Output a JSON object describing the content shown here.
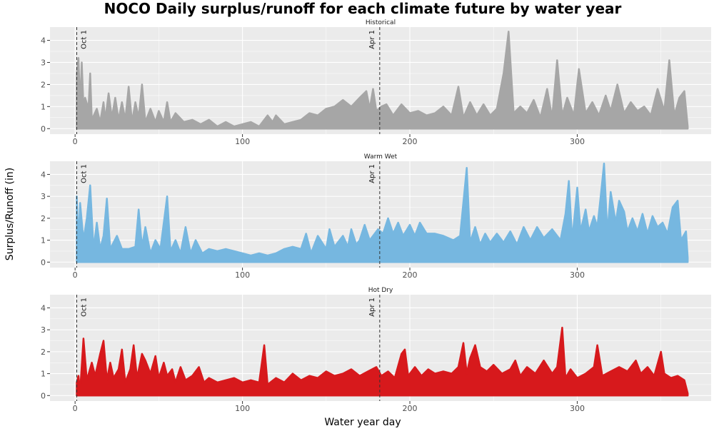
{
  "chart_data": {
    "type": "area",
    "title": "NOCO Daily surplus/runoff for each climate future by water year",
    "xlabel": "Water year day",
    "ylabel": "Surplus/Runoff (in)",
    "xlim": [
      -15,
      380
    ],
    "ylim": [
      -0.25,
      4.6
    ],
    "x_ticks": [
      0,
      100,
      200,
      300
    ],
    "y_ticks": [
      0,
      1,
      2,
      3,
      4
    ],
    "grid": true,
    "reference_lines": [
      {
        "x": 1,
        "label": "Oct 1"
      },
      {
        "x": 182,
        "label": "Apr 1"
      }
    ],
    "colors": {
      "panel_bg": "#ebebeb",
      "grid": "#ffffff",
      "tick_text": "#4d4d4d",
      "ref_line": "#333333"
    },
    "series": [
      {
        "name": "Historical",
        "color": "#a6a6a6",
        "points": [
          [
            1,
            2.5
          ],
          [
            2,
            3.2
          ],
          [
            3,
            1.0
          ],
          [
            4,
            3.0
          ],
          [
            5,
            1.0
          ],
          [
            6,
            1.4
          ],
          [
            8,
            0.9
          ],
          [
            9,
            2.5
          ],
          [
            10,
            0.4
          ],
          [
            13,
            0.9
          ],
          [
            15,
            0.3
          ],
          [
            17,
            1.2
          ],
          [
            18,
            0.4
          ],
          [
            20,
            1.6
          ],
          [
            22,
            0.5
          ],
          [
            24,
            1.4
          ],
          [
            26,
            0.4
          ],
          [
            28,
            1.2
          ],
          [
            30,
            0.4
          ],
          [
            32,
            1.9
          ],
          [
            34,
            0.3
          ],
          [
            36,
            1.2
          ],
          [
            38,
            0.5
          ],
          [
            40,
            2.0
          ],
          [
            42,
            0.3
          ],
          [
            45,
            0.9
          ],
          [
            48,
            0.3
          ],
          [
            50,
            0.8
          ],
          [
            53,
            0.3
          ],
          [
            55,
            1.2
          ],
          [
            57,
            0.3
          ],
          [
            60,
            0.7
          ],
          [
            65,
            0.3
          ],
          [
            70,
            0.4
          ],
          [
            75,
            0.2
          ],
          [
            80,
            0.4
          ],
          [
            85,
            0.1
          ],
          [
            90,
            0.3
          ],
          [
            95,
            0.1
          ],
          [
            100,
            0.2
          ],
          [
            105,
            0.3
          ],
          [
            110,
            0.1
          ],
          [
            115,
            0.6
          ],
          [
            118,
            0.3
          ],
          [
            120,
            0.6
          ],
          [
            125,
            0.2
          ],
          [
            130,
            0.3
          ],
          [
            135,
            0.4
          ],
          [
            140,
            0.7
          ],
          [
            145,
            0.6
          ],
          [
            150,
            0.9
          ],
          [
            155,
            1.0
          ],
          [
            160,
            1.3
          ],
          [
            165,
            1.0
          ],
          [
            170,
            1.4
          ],
          [
            174,
            1.7
          ],
          [
            176,
            0.9
          ],
          [
            178,
            1.8
          ],
          [
            180,
            0.8
          ],
          [
            183,
            1.0
          ],
          [
            186,
            1.1
          ],
          [
            190,
            0.6
          ],
          [
            193,
            0.9
          ],
          [
            195,
            1.1
          ],
          [
            200,
            0.7
          ],
          [
            205,
            0.8
          ],
          [
            210,
            0.6
          ],
          [
            215,
            0.7
          ],
          [
            220,
            1.0
          ],
          [
            225,
            0.6
          ],
          [
            229,
            1.9
          ],
          [
            232,
            0.5
          ],
          [
            236,
            1.2
          ],
          [
            240,
            0.6
          ],
          [
            244,
            1.1
          ],
          [
            248,
            0.6
          ],
          [
            252,
            0.9
          ],
          [
            256,
            2.5
          ],
          [
            259,
            4.4
          ],
          [
            262,
            0.7
          ],
          [
            266,
            1.0
          ],
          [
            270,
            0.7
          ],
          [
            274,
            1.3
          ],
          [
            278,
            0.5
          ],
          [
            282,
            1.8
          ],
          [
            285,
            0.5
          ],
          [
            288,
            3.1
          ],
          [
            291,
            0.6
          ],
          [
            294,
            1.4
          ],
          [
            298,
            0.6
          ],
          [
            301,
            2.7
          ],
          [
            305,
            0.7
          ],
          [
            309,
            1.2
          ],
          [
            313,
            0.6
          ],
          [
            317,
            1.5
          ],
          [
            320,
            0.8
          ],
          [
            324,
            2.0
          ],
          [
            328,
            0.7
          ],
          [
            332,
            1.2
          ],
          [
            336,
            0.8
          ],
          [
            340,
            1.0
          ],
          [
            344,
            0.6
          ],
          [
            348,
            1.8
          ],
          [
            352,
            0.8
          ],
          [
            355,
            3.1
          ],
          [
            358,
            0.6
          ],
          [
            361,
            1.4
          ],
          [
            364,
            1.7
          ],
          [
            366,
            0.1
          ]
        ]
      },
      {
        "name": "Warm Wet",
        "color": "#76b7e0",
        "points": [
          [
            1,
            3.0
          ],
          [
            2,
            0.8
          ],
          [
            3,
            2.7
          ],
          [
            5,
            1.0
          ],
          [
            7,
            2.0
          ],
          [
            9,
            3.5
          ],
          [
            11,
            0.6
          ],
          [
            13,
            1.8
          ],
          [
            15,
            0.6
          ],
          [
            17,
            1.2
          ],
          [
            19,
            2.9
          ],
          [
            21,
            0.6
          ],
          [
            25,
            1.2
          ],
          [
            28,
            0.6
          ],
          [
            32,
            0.6
          ],
          [
            36,
            0.7
          ],
          [
            38,
            2.4
          ],
          [
            40,
            0.7
          ],
          [
            42,
            1.6
          ],
          [
            45,
            0.4
          ],
          [
            48,
            1.0
          ],
          [
            51,
            0.6
          ],
          [
            55,
            3.0
          ],
          [
            57,
            0.5
          ],
          [
            60,
            1.0
          ],
          [
            63,
            0.4
          ],
          [
            66,
            1.6
          ],
          [
            69,
            0.4
          ],
          [
            72,
            1.0
          ],
          [
            76,
            0.4
          ],
          [
            80,
            0.6
          ],
          [
            85,
            0.5
          ],
          [
            90,
            0.6
          ],
          [
            95,
            0.5
          ],
          [
            100,
            0.4
          ],
          [
            105,
            0.3
          ],
          [
            110,
            0.4
          ],
          [
            115,
            0.3
          ],
          [
            120,
            0.4
          ],
          [
            125,
            0.6
          ],
          [
            130,
            0.7
          ],
          [
            135,
            0.6
          ],
          [
            138,
            1.3
          ],
          [
            141,
            0.4
          ],
          [
            145,
            1.2
          ],
          [
            150,
            0.6
          ],
          [
            152,
            1.5
          ],
          [
            155,
            0.7
          ],
          [
            160,
            1.2
          ],
          [
            163,
            0.7
          ],
          [
            165,
            1.5
          ],
          [
            168,
            0.8
          ],
          [
            170,
            1.0
          ],
          [
            173,
            1.7
          ],
          [
            176,
            1.0
          ],
          [
            178,
            1.2
          ],
          [
            181,
            1.5
          ],
          [
            184,
            1.3
          ],
          [
            187,
            2.0
          ],
          [
            190,
            1.3
          ],
          [
            193,
            1.8
          ],
          [
            196,
            1.2
          ],
          [
            200,
            1.7
          ],
          [
            203,
            1.2
          ],
          [
            206,
            1.8
          ],
          [
            210,
            1.3
          ],
          [
            215,
            1.3
          ],
          [
            220,
            1.2
          ],
          [
            226,
            1.0
          ],
          [
            230,
            1.2
          ],
          [
            234,
            4.3
          ],
          [
            236,
            0.9
          ],
          [
            239,
            1.6
          ],
          [
            242,
            0.8
          ],
          [
            245,
            1.3
          ],
          [
            248,
            0.9
          ],
          [
            252,
            1.3
          ],
          [
            256,
            0.9
          ],
          [
            260,
            1.4
          ],
          [
            264,
            0.8
          ],
          [
            268,
            1.6
          ],
          [
            272,
            1.0
          ],
          [
            276,
            1.6
          ],
          [
            280,
            1.1
          ],
          [
            285,
            1.5
          ],
          [
            290,
            1.0
          ],
          [
            293,
            2.2
          ],
          [
            295,
            3.7
          ],
          [
            297,
            1.0
          ],
          [
            300,
            3.4
          ],
          [
            302,
            1.4
          ],
          [
            305,
            2.4
          ],
          [
            307,
            1.4
          ],
          [
            310,
            2.1
          ],
          [
            312,
            1.6
          ],
          [
            314,
            3.0
          ],
          [
            316,
            4.5
          ],
          [
            318,
            1.3
          ],
          [
            320,
            3.2
          ],
          [
            323,
            1.8
          ],
          [
            325,
            2.8
          ],
          [
            328,
            2.3
          ],
          [
            330,
            1.4
          ],
          [
            333,
            2.0
          ],
          [
            336,
            1.4
          ],
          [
            339,
            2.2
          ],
          [
            342,
            1.3
          ],
          [
            345,
            2.1
          ],
          [
            348,
            1.6
          ],
          [
            351,
            1.8
          ],
          [
            354,
            1.3
          ],
          [
            357,
            2.5
          ],
          [
            360,
            2.8
          ],
          [
            362,
            1.0
          ],
          [
            365,
            1.4
          ],
          [
            366,
            0.2
          ]
        ]
      },
      {
        "name": "Hot Dry",
        "color": "#d7191c",
        "points": [
          [
            1,
            0.6
          ],
          [
            2,
            0.9
          ],
          [
            3,
            0.2
          ],
          [
            5,
            2.6
          ],
          [
            7,
            0.7
          ],
          [
            10,
            1.5
          ],
          [
            12,
            0.9
          ],
          [
            15,
            1.9
          ],
          [
            17,
            2.5
          ],
          [
            19,
            0.7
          ],
          [
            21,
            1.5
          ],
          [
            23,
            0.8
          ],
          [
            26,
            1.2
          ],
          [
            28,
            2.1
          ],
          [
            30,
            0.6
          ],
          [
            33,
            1.2
          ],
          [
            35,
            2.3
          ],
          [
            37,
            0.8
          ],
          [
            40,
            1.9
          ],
          [
            42,
            1.6
          ],
          [
            45,
            1.0
          ],
          [
            48,
            1.8
          ],
          [
            50,
            0.8
          ],
          [
            53,
            1.5
          ],
          [
            55,
            0.9
          ],
          [
            58,
            1.2
          ],
          [
            60,
            0.6
          ],
          [
            63,
            1.3
          ],
          [
            66,
            0.7
          ],
          [
            70,
            0.9
          ],
          [
            74,
            1.3
          ],
          [
            77,
            0.6
          ],
          [
            80,
            0.8
          ],
          [
            85,
            0.6
          ],
          [
            90,
            0.7
          ],
          [
            95,
            0.8
          ],
          [
            100,
            0.6
          ],
          [
            105,
            0.7
          ],
          [
            110,
            0.6
          ],
          [
            113,
            2.3
          ],
          [
            115,
            0.5
          ],
          [
            120,
            0.8
          ],
          [
            125,
            0.6
          ],
          [
            130,
            1.0
          ],
          [
            135,
            0.7
          ],
          [
            140,
            0.9
          ],
          [
            145,
            0.8
          ],
          [
            150,
            1.1
          ],
          [
            155,
            0.9
          ],
          [
            160,
            1.0
          ],
          [
            165,
            1.2
          ],
          [
            170,
            0.9
          ],
          [
            175,
            1.1
          ],
          [
            180,
            1.3
          ],
          [
            183,
            0.9
          ],
          [
            187,
            1.1
          ],
          [
            191,
            0.8
          ],
          [
            195,
            1.9
          ],
          [
            197,
            2.1
          ],
          [
            199,
            0.9
          ],
          [
            203,
            1.3
          ],
          [
            207,
            0.9
          ],
          [
            211,
            1.2
          ],
          [
            215,
            1.0
          ],
          [
            220,
            1.1
          ],
          [
            225,
            1.0
          ],
          [
            229,
            1.3
          ],
          [
            232,
            2.4
          ],
          [
            234,
            1.0
          ],
          [
            236,
            1.7
          ],
          [
            239,
            2.3
          ],
          [
            242,
            1.3
          ],
          [
            246,
            1.1
          ],
          [
            250,
            1.4
          ],
          [
            255,
            1.0
          ],
          [
            260,
            1.2
          ],
          [
            263,
            1.6
          ],
          [
            266,
            0.9
          ],
          [
            270,
            1.3
          ],
          [
            275,
            1.0
          ],
          [
            280,
            1.6
          ],
          [
            285,
            1.0
          ],
          [
            288,
            1.3
          ],
          [
            291,
            3.1
          ],
          [
            293,
            0.8
          ],
          [
            296,
            1.2
          ],
          [
            300,
            0.8
          ],
          [
            305,
            1.0
          ],
          [
            310,
            1.3
          ],
          [
            312,
            2.3
          ],
          [
            315,
            0.9
          ],
          [
            320,
            1.1
          ],
          [
            325,
            1.3
          ],
          [
            330,
            1.1
          ],
          [
            335,
            1.6
          ],
          [
            338,
            1.0
          ],
          [
            342,
            1.3
          ],
          [
            346,
            0.9
          ],
          [
            350,
            2.0
          ],
          [
            352,
            1.0
          ],
          [
            356,
            0.8
          ],
          [
            360,
            0.9
          ],
          [
            364,
            0.7
          ],
          [
            366,
            0.1
          ]
        ]
      }
    ]
  }
}
